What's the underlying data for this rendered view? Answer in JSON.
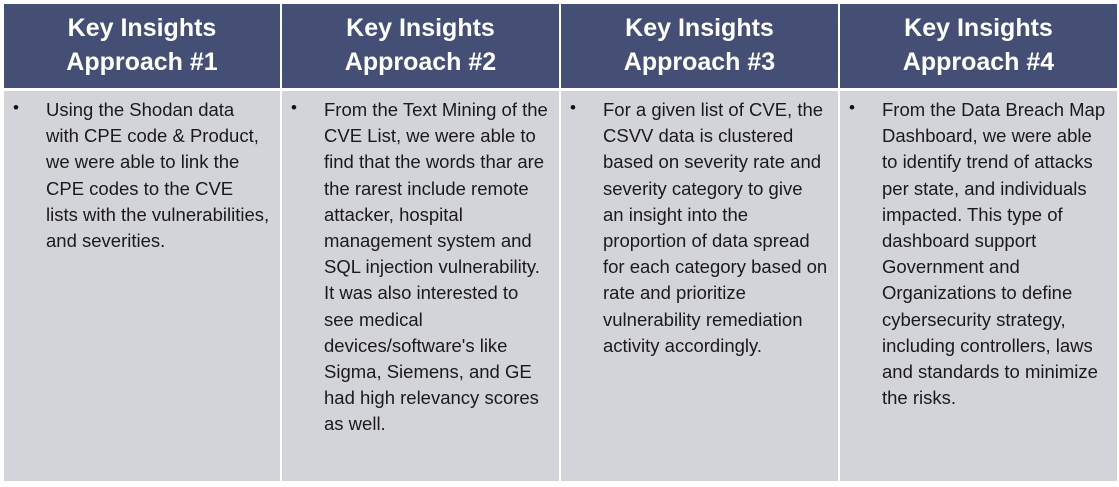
{
  "columns": [
    {
      "title_line1": "Key Insights",
      "title_line2": "Approach #1",
      "text": "Using the Shodan data with CPE code & Product, we were able to link the CPE codes to the CVE lists with the vulnerabilities, and severities."
    },
    {
      "title_line1": "Key Insights",
      "title_line2": "Approach #2",
      "text": "From the Text Mining of the CVE List, we were able to find that the words thar are the rarest include remote attacker, hospital management system and SQL injection vulnerability. It was also interested to see medical devices/software's like Sigma, Siemens, and GE had high relevancy scores as well."
    },
    {
      "title_line1": "Key Insights",
      "title_line2": "Approach #3",
      "text": "For a given list of CVE, the CSVV data is clustered based on severity rate and severity category to give an insight into the proportion of data spread for each category based on rate and prioritize vulnerability remediation activity accordingly."
    },
    {
      "title_line1": "Key Insights",
      "title_line2": "Approach #4",
      "text": "From the Data Breach Map Dashboard, we were able to identify trend of attacks per state, and individuals impacted. This type of dashboard support Government and Organizations to define cybersecurity strategy, including controllers, laws and standards to minimize the risks."
    }
  ],
  "bullet_symbol": "•",
  "colors": {
    "header_bg": "#454f75",
    "header_text": "#ffffff",
    "cell_bg": "#d3d4d9",
    "body_text": "#1a1a1a"
  }
}
